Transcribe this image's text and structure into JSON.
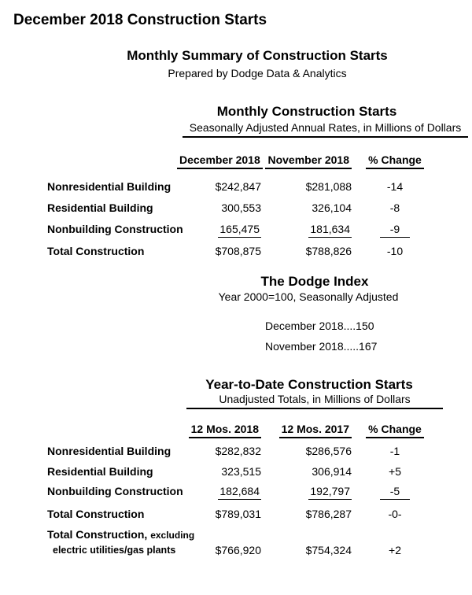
{
  "page": {
    "title": "December 2018 Construction Starts",
    "summary_title": "Monthly Summary of Construction Starts",
    "prepared_by": "Prepared by Dodge Data & Analytics"
  },
  "monthly": {
    "title": "Monthly Construction Starts",
    "subtitle": "Seasonally Adjusted Annual Rates, in Millions of Dollars",
    "columns": [
      "December 2018",
      "November 2018",
      "% Change"
    ],
    "rows": [
      {
        "label": "Nonresidential Building",
        "col1": "$242,847",
        "col2": "$281,088",
        "change": "-14"
      },
      {
        "label": "Residential Building",
        "col1": "300,553",
        "col2": "326,104",
        "change": "-8"
      },
      {
        "label": "Nonbuilding Construction",
        "col1": "165,475",
        "col2": "181,634",
        "change": "-9"
      },
      {
        "label": "Total Construction",
        "col1": "$708,875",
        "col2": "$788,826",
        "change": "-10"
      }
    ]
  },
  "dodge_index": {
    "title": "The Dodge Index",
    "subtitle": "Year 2000=100, Seasonally Adjusted",
    "entries": [
      "December 2018....150",
      "November 2018.....167"
    ]
  },
  "ytd": {
    "title": "Year-to-Date Construction Starts",
    "subtitle": "Unadjusted Totals, in Millions of Dollars",
    "columns": [
      "12 Mos. 2018",
      "12 Mos. 2017",
      "% Change"
    ],
    "rows": [
      {
        "label": "Nonresidential Building",
        "col1": "$282,832",
        "col2": "$286,576",
        "change": "-1"
      },
      {
        "label": "Residential Building",
        "col1": "323,515",
        "col2": "306,914",
        "change": "+5"
      },
      {
        "label": "Nonbuilding Construction",
        "col1": "182,684",
        "col2": "192,797",
        "change": "-5"
      },
      {
        "label": "Total Construction",
        "col1": "$789,031",
        "col2": "$786,287",
        "change": "-0-"
      }
    ],
    "extra_row": {
      "label_line1": "Total Construction,",
      "label_line1_suffix": "excluding",
      "label_line2": "electric utilities/gas plants",
      "col1": "$766,920",
      "col2": "$754,324",
      "change": "+2"
    }
  }
}
